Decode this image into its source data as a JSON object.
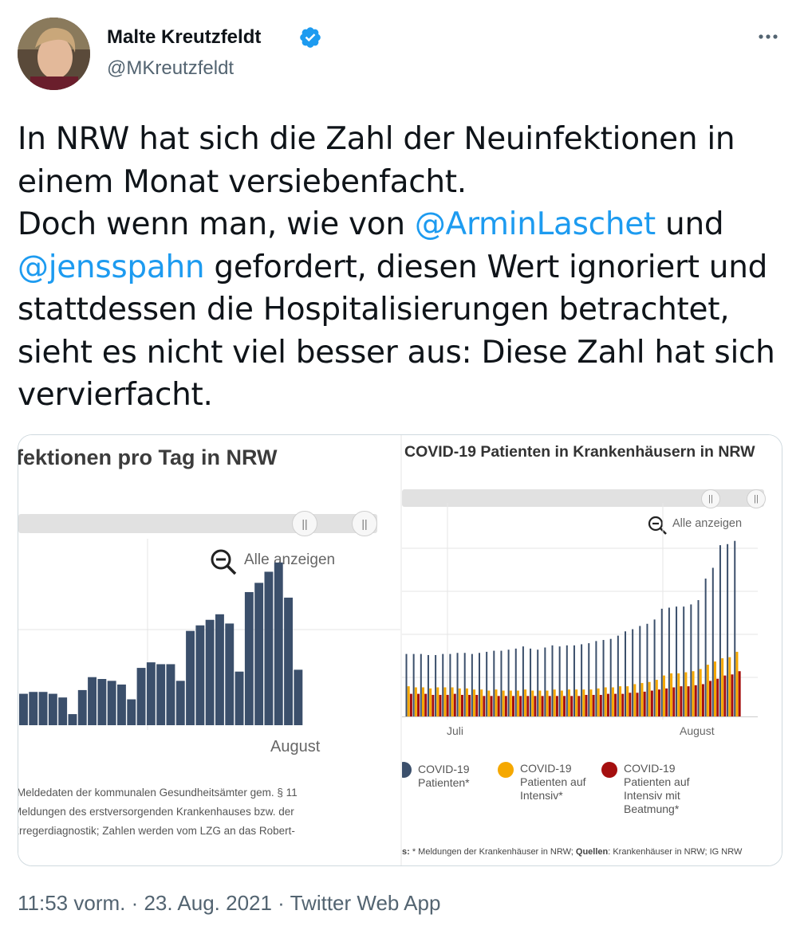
{
  "author": {
    "name": "Malte Kreutzfeldt",
    "handle": "@MKreutzfeldt",
    "verified_icon": "verified-badge-icon",
    "more_icon": "more-options-icon"
  },
  "tweet": {
    "line1": "In NRW hat sich die Zahl der Neuinfektionen in",
    "line2": "einem Monat versiebenfacht.",
    "line3_pre": "Doch wenn man, wie von ",
    "mention1": "@ArminLaschet",
    "line3_post": " und",
    "mention2": "@jensspahn",
    "line4_post": " gefordert, diesen Wert ignoriert und",
    "line5": "stattdessen die Hospitalisierungen betrachtet,",
    "line6": "sieht es nicht viel besser aus: Diese Zahl hat sich",
    "line7": "vervierfacht."
  },
  "left_chart": {
    "title": "fektionen pro Tag in NRW",
    "zoom_label": "Alle anzeigen",
    "x_label": "August",
    "footnote1": "Meldedaten der kommunalen Gesundheitsämter gem. § 11",
    "footnote2": "Meldungen des erstversorgenden Krankenhauses bzw. der",
    "footnote3": "Erregerdiagnostik; Zahlen werden vom LZG an das Robert-",
    "color_bar": "#3b4f6b"
  },
  "right_chart": {
    "title": "COVID-19 Patienten in Krankenhäusern in NRW",
    "zoom_label": "Alle anzeigen",
    "x_label_1": "Juli",
    "x_label_2": "August",
    "legend": [
      {
        "label": "COVID-19\nPatienten*",
        "color": "#3b4f6b"
      },
      {
        "label": "COVID-19\nPatienten auf\nIntensiv*",
        "color": "#f5a800"
      },
      {
        "label": "COVID-19\nPatienten auf\nIntensiv mit\nBeatmung*",
        "color": "#a50f0f"
      }
    ],
    "sources_prefix": "s:",
    "sources_text": " * Meldungen der Krankenhäuser in NRW; ",
    "sources_label": "Quellen",
    "sources_tail": ": Krankenhäuser in NRW; IG NRW"
  },
  "chart_data": [
    {
      "type": "bar",
      "title": "fektionen pro Tag in NRW",
      "x_tick_labels": [
        "August"
      ],
      "series": [
        {
          "values": [
            17,
            18,
            18,
            17,
            15,
            6,
            19,
            26,
            25,
            24,
            22,
            14,
            31,
            34,
            33,
            33,
            24,
            51,
            54,
            57,
            60,
            55,
            29,
            72,
            77,
            83,
            88,
            69,
            30
          ]
        }
      ]
    },
    {
      "type": "bar",
      "title": "COVID-19 Patienten in Krankenhäusern in NRW",
      "x_tick_labels": [
        "Juli",
        "August"
      ],
      "series": [
        {
          "name": "COVID-19 Patienten*",
          "values": [
            58,
            58,
            58,
            57,
            57,
            58,
            58,
            59,
            59,
            58,
            59,
            60,
            61,
            61,
            62,
            63,
            65,
            63,
            62,
            64,
            66,
            65,
            66,
            66,
            67,
            68,
            70,
            71,
            72,
            75,
            79,
            81,
            84,
            86,
            90,
            100,
            101,
            102,
            102,
            104,
            108,
            128,
            138,
            159,
            160,
            163
          ]
        },
        {
          "name": "COVID-19 Patienten auf Intensiv*",
          "values": [
            28,
            27,
            27,
            26,
            27,
            27,
            27,
            26,
            26,
            25,
            25,
            24,
            25,
            24,
            24,
            24,
            25,
            24,
            24,
            24,
            25,
            24,
            25,
            25,
            25,
            25,
            26,
            27,
            27,
            28,
            28,
            30,
            31,
            32,
            34,
            38,
            40,
            40,
            41,
            42,
            44,
            48,
            51,
            54,
            55,
            60
          ]
        },
        {
          "name": "COVID-19 Patienten auf Intensiv mit Beatmung*",
          "values": [
            21,
            21,
            21,
            20,
            20,
            20,
            21,
            20,
            20,
            20,
            19,
            19,
            19,
            19,
            19,
            19,
            19,
            19,
            19,
            19,
            19,
            19,
            19,
            19,
            20,
            20,
            20,
            21,
            21,
            21,
            22,
            22,
            23,
            24,
            25,
            26,
            27,
            28,
            28,
            29,
            30,
            33,
            35,
            38,
            39,
            42
          ]
        }
      ]
    }
  ],
  "timestamp": {
    "time": "11:53 vorm.",
    "sep1": " · ",
    "date": "23. Aug. 2021",
    "sep2": " · ",
    "app": "Twitter Web App"
  }
}
